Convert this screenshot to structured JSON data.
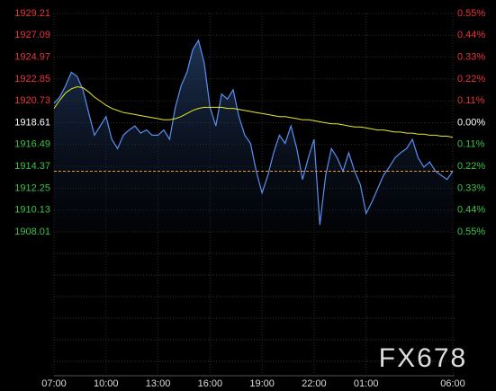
{
  "chart_data": {
    "type": "line",
    "watermark": "FX678",
    "x": [
      "07:00",
      "07:20",
      "07:40",
      "08:00",
      "08:20",
      "08:40",
      "09:00",
      "09:20",
      "09:40",
      "10:00",
      "10:20",
      "10:40",
      "11:00",
      "11:20",
      "11:40",
      "12:00",
      "12:20",
      "12:40",
      "13:00",
      "13:20",
      "13:40",
      "14:00",
      "14:20",
      "14:40",
      "15:00",
      "15:20",
      "15:40",
      "16:00",
      "16:20",
      "16:40",
      "17:00",
      "17:20",
      "17:40",
      "18:00",
      "18:20",
      "18:40",
      "19:00",
      "19:20",
      "19:40",
      "20:00",
      "20:20",
      "20:40",
      "21:00",
      "21:20",
      "21:40",
      "22:00",
      "22:20",
      "22:40",
      "23:00",
      "23:20",
      "23:40",
      "00:00",
      "00:20",
      "00:40",
      "01:00",
      "01:20",
      "01:40",
      "02:00",
      "02:20",
      "02:40",
      "03:00",
      "03:20",
      "03:40",
      "04:00",
      "04:20",
      "04:40",
      "05:00",
      "05:20",
      "05:40",
      "06:00"
    ],
    "series": [
      {
        "color": "#5b8ff0",
        "values": [
          1920.5,
          1921.1,
          1922.2,
          1923.5,
          1923.1,
          1921.8,
          1919.6,
          1917.4,
          1918.3,
          1919.2,
          1917.0,
          1916.1,
          1917.4,
          1917.9,
          1918.3,
          1917.6,
          1917.9,
          1917.4,
          1917.4,
          1917.9,
          1917.0,
          1920.1,
          1922.2,
          1923.5,
          1925.7,
          1926.6,
          1924.4,
          1920.1,
          1918.3,
          1921.4,
          1920.9,
          1921.8,
          1919.2,
          1917.4,
          1916.6,
          1913.9,
          1911.8,
          1913.5,
          1915.7,
          1917.4,
          1916.6,
          1918.3,
          1916.1,
          1913.1,
          1915.2,
          1917.0,
          1908.7,
          1913.5,
          1916.1,
          1915.2,
          1913.9,
          1915.7,
          1913.9,
          1912.6,
          1909.8,
          1910.9,
          1912.2,
          1913.5,
          1914.3,
          1915.2,
          1915.7,
          1916.1,
          1917.0,
          1915.2,
          1914.3,
          1914.8,
          1913.9,
          1913.5,
          1913.1,
          1913.9
        ]
      },
      {
        "color": "#e8e82a",
        "values": [
          1920.0,
          1920.8,
          1921.5,
          1921.9,
          1922.1,
          1922.0,
          1921.6,
          1921.1,
          1920.7,
          1920.3,
          1920.0,
          1919.8,
          1919.6,
          1919.5,
          1919.4,
          1919.3,
          1919.2,
          1919.1,
          1919.0,
          1918.9,
          1918.9,
          1919.0,
          1919.2,
          1919.5,
          1919.8,
          1920.0,
          1920.1,
          1920.1,
          1920.1,
          1920.1,
          1920.0,
          1920.0,
          1919.9,
          1919.8,
          1919.7,
          1919.6,
          1919.5,
          1919.4,
          1919.3,
          1919.2,
          1919.2,
          1919.1,
          1919.0,
          1918.9,
          1918.9,
          1918.8,
          1918.7,
          1918.6,
          1918.5,
          1918.5,
          1918.4,
          1918.3,
          1918.2,
          1918.2,
          1918.1,
          1918.0,
          1917.9,
          1917.9,
          1917.8,
          1917.7,
          1917.7,
          1917.6,
          1917.6,
          1917.5,
          1917.5,
          1917.4,
          1917.4,
          1917.3,
          1917.3,
          1917.2
        ]
      }
    ],
    "current_price": 1913.9,
    "base_price": 1918.61,
    "up_color": "#e8343a",
    "down_color": "#3cc24a",
    "flat_color": "#ffffff",
    "ylim": [
      1908.01,
      1929.21
    ],
    "yticks": [
      1929.21,
      1927.09,
      1924.97,
      1922.85,
      1920.73,
      1918.61,
      1916.49,
      1914.37,
      1912.25,
      1910.13,
      1908.01
    ],
    "y2lim": [
      -0.55,
      0.55
    ],
    "y2ticks": [
      {
        "value": 0.55,
        "label": "0.55%"
      },
      {
        "value": 0.44,
        "label": "0.44%"
      },
      {
        "value": 0.33,
        "label": "0.33%"
      },
      {
        "value": 0.22,
        "label": "0.22%"
      },
      {
        "value": 0.11,
        "label": "0.11%"
      },
      {
        "value": 0,
        "label": "0.00%"
      },
      {
        "value": -0.11,
        "label": "0.11%"
      },
      {
        "value": -0.22,
        "label": "0.22%"
      },
      {
        "value": -0.33,
        "label": "0.33%"
      },
      {
        "value": -0.44,
        "label": "0.44%"
      },
      {
        "value": -0.55,
        "label": "0.55%"
      }
    ],
    "xticks": [
      "07:00",
      "10:00",
      "13:00",
      "16:00",
      "19:00",
      "22:00",
      "01:00",
      "06:00"
    ],
    "grid": true
  }
}
